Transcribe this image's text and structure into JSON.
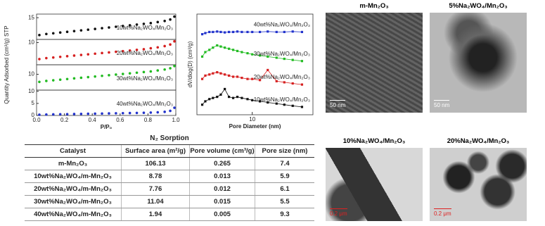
{
  "chart_data": [
    {
      "type": "line",
      "ylabel": "Quantity Adsorbed (cm³/g) STP",
      "annotation": "10wt%Na₂WO₄/Mn₂O₃",
      "color": "#111111",
      "x": [
        0.02,
        0.07,
        0.12,
        0.17,
        0.22,
        0.27,
        0.32,
        0.37,
        0.42,
        0.47,
        0.52,
        0.57,
        0.62,
        0.67,
        0.72,
        0.77,
        0.82,
        0.87,
        0.92,
        0.96,
        0.99
      ],
      "values": [
        10.2,
        10.5,
        10.7,
        10.9,
        11.1,
        11.3,
        11.5,
        11.7,
        11.9,
        12.1,
        12.3,
        12.5,
        12.7,
        12.9,
        13.1,
        13.3,
        13.5,
        13.8,
        14.1,
        14.5,
        15.3
      ],
      "xlim": [
        0,
        1
      ],
      "ylim": [
        9,
        16
      ],
      "yticks": [
        15
      ]
    },
    {
      "type": "line",
      "annotation": "20wt%Na₂WO₄/Mn₂O₃",
      "color": "#d62020",
      "x": [
        0.02,
        0.07,
        0.12,
        0.17,
        0.22,
        0.27,
        0.32,
        0.37,
        0.42,
        0.47,
        0.52,
        0.57,
        0.62,
        0.67,
        0.72,
        0.77,
        0.82,
        0.87,
        0.92,
        0.96,
        0.99
      ],
      "values": [
        4.8,
        5.1,
        5.3,
        5.5,
        5.7,
        5.9,
        6.1,
        6.3,
        6.5,
        6.7,
        6.9,
        7.1,
        7.3,
        7.5,
        7.7,
        7.9,
        8.2,
        8.5,
        8.9,
        9.4,
        10.4
      ],
      "xlim": [
        0,
        1
      ],
      "ylim": [
        3,
        11
      ],
      "yticks": [
        10
      ]
    },
    {
      "type": "line",
      "annotation": "30wt%Na₂WO₄/Mn₂O₃",
      "color": "#22bb22",
      "x": [
        0.02,
        0.07,
        0.12,
        0.17,
        0.22,
        0.27,
        0.32,
        0.37,
        0.42,
        0.47,
        0.52,
        0.57,
        0.62,
        0.67,
        0.72,
        0.77,
        0.82,
        0.87,
        0.92,
        0.96,
        0.99
      ],
      "values": [
        7.6,
        7.9,
        8.1,
        8.3,
        8.5,
        8.7,
        8.9,
        9.1,
        9.3,
        9.5,
        9.7,
        9.9,
        10.1,
        10.3,
        10.5,
        10.7,
        10.9,
        11.2,
        11.5,
        11.9,
        12.6
      ],
      "xlim": [
        0,
        1
      ],
      "ylim": [
        5,
        13
      ],
      "yticks": [
        10
      ]
    },
    {
      "type": "line",
      "annotation": "40wt%Na₂WO₄/Mn₂O₃",
      "color": "#2233cc",
      "xlabel": "P/P₀",
      "x": [
        0.02,
        0.07,
        0.12,
        0.17,
        0.22,
        0.27,
        0.32,
        0.37,
        0.42,
        0.47,
        0.52,
        0.57,
        0.62,
        0.67,
        0.72,
        0.77,
        0.82,
        0.87,
        0.92,
        0.96,
        0.99
      ],
      "values": [
        0.3,
        0.4,
        0.45,
        0.5,
        0.55,
        0.6,
        0.65,
        0.7,
        0.75,
        0.8,
        0.85,
        0.9,
        0.95,
        1.0,
        1.05,
        1.1,
        1.2,
        1.3,
        1.5,
        1.9,
        3.2
      ],
      "xlim": [
        0,
        1
      ],
      "ylim": [
        0,
        10.5
      ],
      "yticks": [
        0,
        5,
        10
      ],
      "xticks": [
        {
          "value": 0,
          "label": "0.0"
        },
        {
          "value": 0.2,
          "label": "0.2"
        },
        {
          "value": 0.4,
          "label": "0.4"
        },
        {
          "value": 0.6,
          "label": "0.6"
        },
        {
          "value": 0.8,
          "label": "0.8"
        },
        {
          "value": 1,
          "label": "1.0"
        }
      ]
    },
    {
      "type": "psd",
      "xlabel": "Pore Diameter (nm)",
      "ylabel": "dV/dlog(D) (cm³/g)",
      "log_x": true,
      "x": [
        1.8,
        2.0,
        2.3,
        2.6,
        3.0,
        3.4,
        3.9,
        4.5,
        5.2,
        6,
        7,
        8.5,
        10,
        13,
        17,
        23,
        30,
        40,
        55
      ],
      "xlim": [
        1.5,
        80
      ],
      "ylim": [
        0,
        4.5
      ],
      "xticks": [
        10
      ],
      "series": [
        {
          "name": "10wt%Na₂WO₄/Mn₂O₃",
          "color": "#111111",
          "values": [
            0.45,
            0.6,
            0.7,
            0.75,
            0.8,
            0.9,
            1.15,
            0.8,
            0.75,
            0.8,
            0.75,
            0.7,
            0.65,
            0.6,
            0.55,
            0.5,
            0.45,
            0.4,
            0.35
          ]
        },
        {
          "name": "20wt%Na₂WO₄/Mn₂O₃",
          "color": "#d62020",
          "values": [
            1.6,
            1.75,
            1.8,
            1.85,
            1.9,
            1.85,
            1.8,
            1.75,
            1.7,
            1.7,
            1.65,
            1.6,
            1.6,
            1.55,
            2.0,
            1.5,
            1.45,
            1.4,
            1.35
          ]
        },
        {
          "name": "30wt%Na₂WO₄/Mn₂O₃",
          "color": "#22bb22",
          "values": [
            2.6,
            2.8,
            2.9,
            3.0,
            3.1,
            3.05,
            3.0,
            2.95,
            2.9,
            2.85,
            2.8,
            2.75,
            2.7,
            2.65,
            2.6,
            2.55,
            2.5,
            2.45,
            2.4
          ]
        },
        {
          "name": "40wt%Na₂WO₄/Mn₂O₃",
          "color": "#2233cc",
          "values": [
            3.6,
            3.65,
            3.7,
            3.7,
            3.72,
            3.7,
            3.68,
            3.7,
            3.7,
            3.72,
            3.7,
            3.7,
            3.7,
            3.7,
            3.72,
            3.7,
            3.7,
            3.72,
            3.7
          ]
        }
      ]
    }
  ],
  "table": {
    "title": "N₂ Sorption",
    "columns": [
      "Catalyst",
      "Surface area (m²/g)",
      "Pore volume (cm³/g)",
      "Pore size (nm)"
    ],
    "rows": [
      [
        "m-Mn₂O₃",
        "106.13",
        "0.265",
        "7.4"
      ],
      [
        "10wt%Na₂WO₄/m-Mn₂O₃",
        "8.78",
        "0.013",
        "5.9"
      ],
      [
        "20wt%Na₂WO₄/m-Mn₂O₃",
        "7.76",
        "0.012",
        "6.1"
      ],
      [
        "30wt%Na₂WO₄/m-Mn₂O₃",
        "11.04",
        "0.015",
        "5.5"
      ],
      [
        "40wt%Na₂WO₄/m-Mn₂O₃",
        "1.94",
        "0.005",
        "9.3"
      ]
    ]
  },
  "images": [
    {
      "title": "m-Mn₂O₃",
      "scale": "50 nm"
    },
    {
      "title": "5%Na₂WO₄/Mn₂O₃",
      "scale": "50 nm"
    },
    {
      "title": "10%Na₂WO₄/Mn₂O₃",
      "scale": "0.2 μm"
    },
    {
      "title": "20%Na₂WO₄/Mn₂O₃",
      "scale": "0.2 μm"
    }
  ]
}
